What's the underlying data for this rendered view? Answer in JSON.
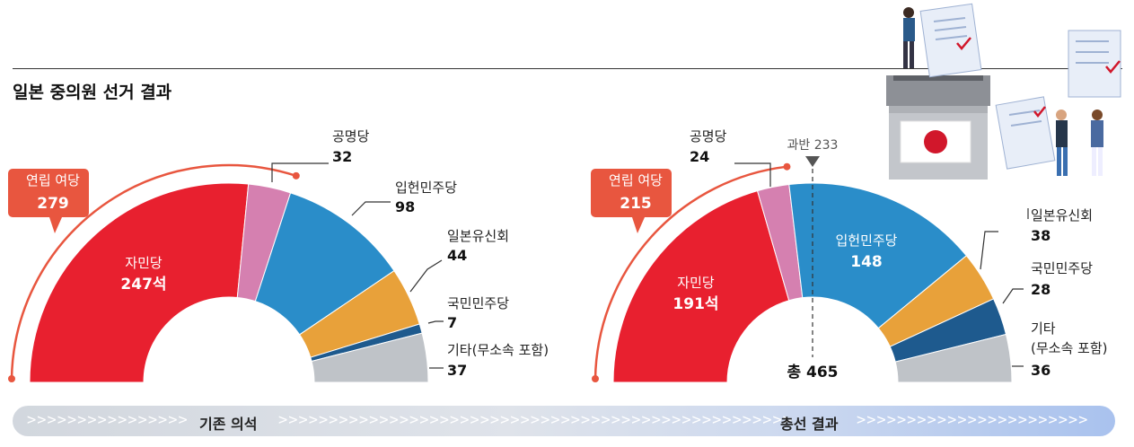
{
  "page_title": "일본 중의원 선거 결과",
  "timeline": {
    "left_label": "기존 의석",
    "right_label": "총선 결과"
  },
  "chart_data": [
    {
      "type": "pie",
      "variant": "half-donut",
      "title": "기존 의석",
      "coalition": {
        "name": "연립 여당",
        "value": "279"
      },
      "series": [
        {
          "name": "자민당",
          "value": 247,
          "display": "247석",
          "color": "#e8202f"
        },
        {
          "name": "공명당",
          "value": 32,
          "display": "32",
          "color": "#d580b0"
        },
        {
          "name": "입헌민주당",
          "value": 98,
          "display": "98",
          "color": "#2a8dc9"
        },
        {
          "name": "일본유신회",
          "value": 44,
          "display": "44",
          "color": "#e8a13a"
        },
        {
          "name": "국민민주당",
          "value": 7,
          "display": "7",
          "color": "#1e5a8e"
        },
        {
          "name": "기타(무소속 포함)",
          "value": 37,
          "display": "37",
          "color": "#bfc3c8"
        }
      ]
    },
    {
      "type": "pie",
      "variant": "half-donut",
      "title": "총선 결과",
      "coalition": {
        "name": "연립 여당",
        "value": "215"
      },
      "majority_label": "과반 233",
      "total_label": "총 465",
      "series": [
        {
          "name": "자민당",
          "value": 191,
          "display": "191석",
          "color": "#e8202f"
        },
        {
          "name": "공명당",
          "value": 24,
          "display": "24",
          "color": "#d580b0"
        },
        {
          "name": "입헌민주당",
          "value": 148,
          "display": "148",
          "color": "#2a8dc9"
        },
        {
          "name": "일본유신회",
          "value": 38,
          "display": "38",
          "color": "#e8a13a"
        },
        {
          "name": "국민민주당",
          "value": 28,
          "display": "28",
          "color": "#1e5a8e"
        },
        {
          "name": "기타",
          "name2": "(무소속 포함)",
          "value": 36,
          "display": "36",
          "color": "#bfc3c8"
        }
      ]
    }
  ],
  "colors": {
    "coalition_arc": "#e8563f",
    "callout_line": "#333333",
    "title_rule": "#333333"
  },
  "icons": [
    "ballot-box-icon",
    "japan-flag-icon",
    "voter-figure-icon",
    "ballot-paper-icon"
  ]
}
